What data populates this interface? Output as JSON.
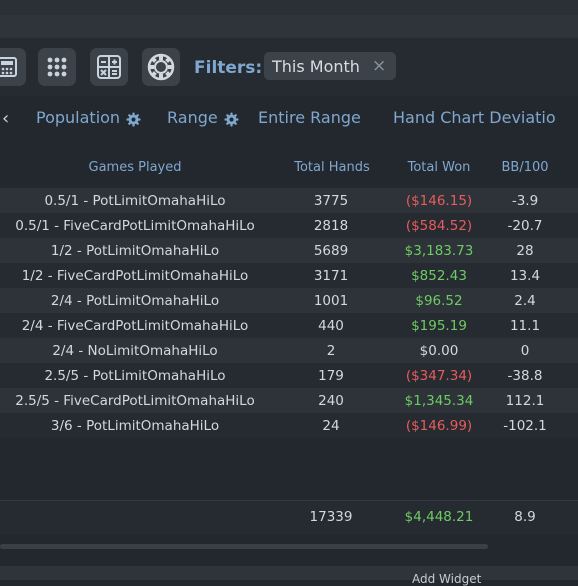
{
  "top_partial_text": "",
  "toolbar": {
    "filters_label": "Filters:",
    "filter_chip": "This Month",
    "filter_chip_close": "×"
  },
  "tabs": {
    "back_arrow": "‹",
    "population": "Population",
    "range": "Range",
    "entire_range": "Entire Range",
    "hand_chart": "Hand Chart Deviatio"
  },
  "table": {
    "headers": [
      "Games Played",
      "Total Hands",
      "Total Won",
      "BB/100"
    ],
    "rows": [
      {
        "game": "0.5/1 - PotLimitOmahaHiLo",
        "hands": "3775",
        "won": "($146.15)",
        "bb": "-3.9",
        "won_sign": "neg"
      },
      {
        "game": "0.5/1 - FiveCardPotLimitOmahaHiLo",
        "hands": "2818",
        "won": "($584.52)",
        "bb": "-20.7",
        "won_sign": "neg"
      },
      {
        "game": "1/2 - PotLimitOmahaHiLo",
        "hands": "5689",
        "won": "$3,183.73",
        "bb": "28",
        "won_sign": "pos"
      },
      {
        "game": "1/2 - FiveCardPotLimitOmahaHiLo",
        "hands": "3171",
        "won": "$852.43",
        "bb": "13.4",
        "won_sign": "pos"
      },
      {
        "game": "2/4 - PotLimitOmahaHiLo",
        "hands": "1001",
        "won": "$96.52",
        "bb": "2.4",
        "won_sign": "pos"
      },
      {
        "game": "2/4 - FiveCardPotLimitOmahaHiLo",
        "hands": "440",
        "won": "$195.19",
        "bb": "11.1",
        "won_sign": "pos"
      },
      {
        "game": "2/4 - NoLimitOmahaHiLo",
        "hands": "2",
        "won": "$0.00",
        "bb": "0",
        "won_sign": "zero"
      },
      {
        "game": "2.5/5 - PotLimitOmahaHiLo",
        "hands": "179",
        "won": "($347.34)",
        "bb": "-38.8",
        "won_sign": "neg"
      },
      {
        "game": "2.5/5 - FiveCardPotLimitOmahaHiLo",
        "hands": "240",
        "won": "$1,345.34",
        "bb": "112.1",
        "won_sign": "pos"
      },
      {
        "game": "3/6 - PotLimitOmahaHiLo",
        "hands": "24",
        "won": "($146.99)",
        "bb": "-102.1",
        "won_sign": "neg"
      }
    ],
    "totals": {
      "hands": "17339",
      "won": "$4,448.21",
      "bb": "8.9"
    }
  },
  "bottom": {
    "partial_text": "Add Widget"
  },
  "colors": {
    "positive": "#6ecb63",
    "negative": "#ea5b5b",
    "accent": "#7fa7cf"
  },
  "icons": [
    "calculator-icon",
    "grid-icon",
    "calculator-grid-icon",
    "poker-chip-icon",
    "gear-icon",
    "close-icon",
    "chevron-left-icon"
  ]
}
